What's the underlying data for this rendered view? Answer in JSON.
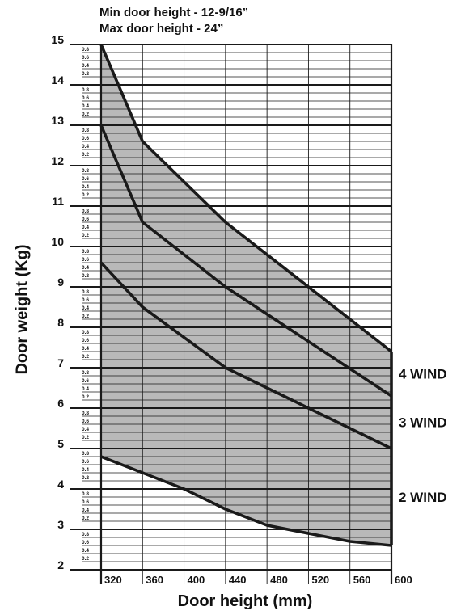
{
  "chart_data": {
    "type": "area",
    "title_lines": [
      "Min door height - 12-9/16”",
      "Max door height - 24”"
    ],
    "xlabel": "Door height (mm)",
    "ylabel": "Door weight (Kg)",
    "xlim": [
      320,
      600
    ],
    "ylim": [
      2,
      15
    ],
    "x_ticks": [
      320,
      360,
      400,
      440,
      480,
      520,
      560,
      600
    ],
    "y_major_ticks": [
      2,
      3,
      4,
      5,
      6,
      7,
      8,
      9,
      10,
      11,
      12,
      13,
      14,
      15
    ],
    "y_minor_tick_labels": [
      "0.2",
      "0.4",
      "0.6",
      "0.8"
    ],
    "grid": true,
    "series": [
      {
        "name": "4 WIND",
        "x": [
          320,
          360,
          440,
          600
        ],
        "y": [
          15,
          12.6,
          10.6,
          7.4
        ]
      },
      {
        "name": "3 WIND",
        "x": [
          320,
          360,
          440,
          600
        ],
        "y": [
          13,
          10.6,
          9.0,
          6.3
        ]
      },
      {
        "name": "2 WIND",
        "x": [
          320,
          360,
          440,
          600
        ],
        "y": [
          9.6,
          8.5,
          7.0,
          5.0
        ]
      },
      {
        "name": "",
        "x": [
          320,
          360,
          400,
          440,
          480,
          560,
          600
        ],
        "y": [
          4.8,
          4.4,
          4.0,
          3.5,
          3.1,
          2.7,
          2.6
        ]
      }
    ],
    "colors": {
      "fill": "#b9b9b9",
      "line": "#1a1a1a",
      "grid": "#1a1a1a"
    }
  }
}
